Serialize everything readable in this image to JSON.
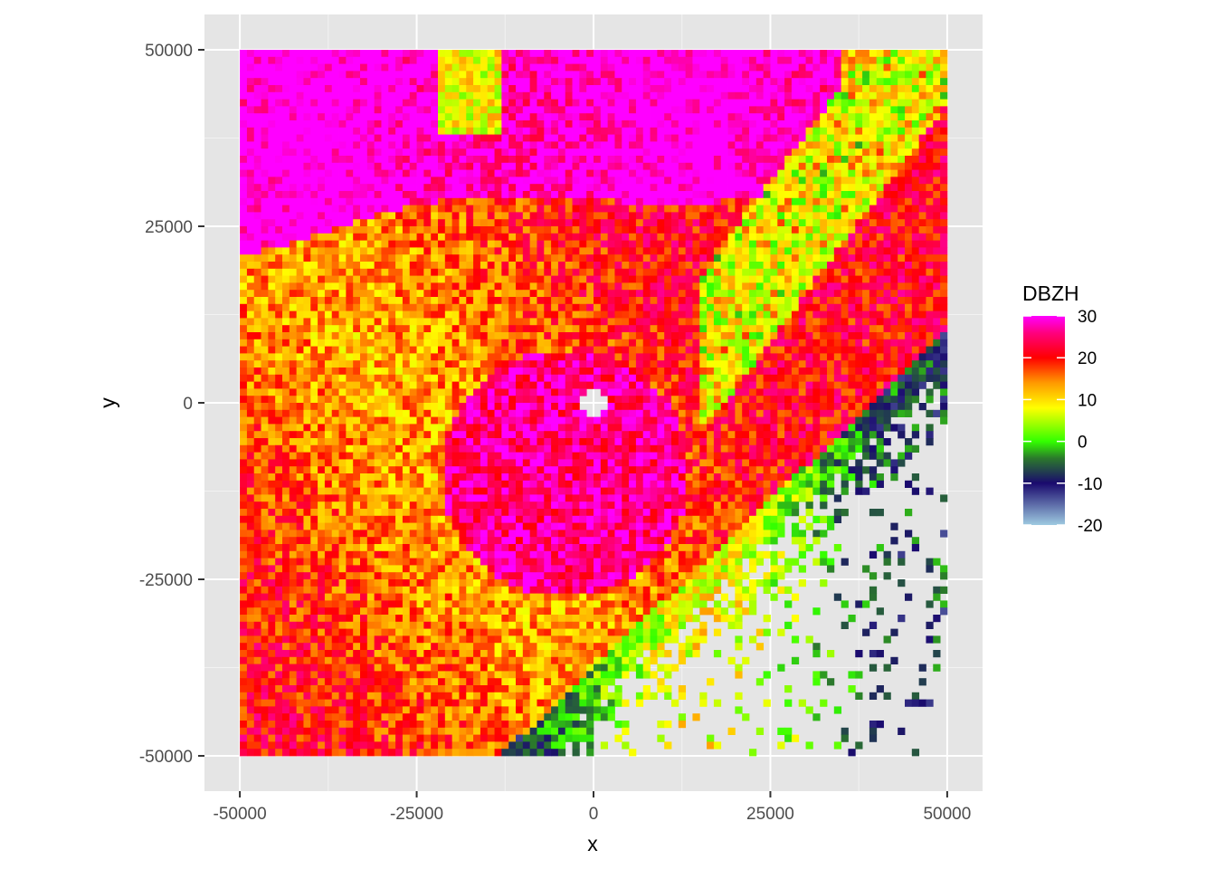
{
  "chart_data": {
    "type": "heatmap",
    "xlabel": "x",
    "ylabel": "y",
    "xlim": [
      -55000,
      55000
    ],
    "ylim": [
      -55000,
      55000
    ],
    "data_extent": {
      "x": [
        -50000,
        50000
      ],
      "y": [
        -50000,
        50000
      ]
    },
    "x_ticks": [
      -50000,
      -25000,
      0,
      25000,
      50000
    ],
    "x_tick_labels": [
      "-50000",
      "-25000",
      "0",
      "25000",
      "50000"
    ],
    "y_ticks": [
      -50000,
      -25000,
      0,
      25000,
      50000
    ],
    "y_tick_labels": [
      "-50000",
      "-25000",
      "0",
      "25000",
      "50000"
    ],
    "grid": true,
    "panel_background": "#e5e5e5",
    "legend": {
      "title": "DBZH",
      "placement": "right",
      "range": [
        -20,
        30
      ],
      "breaks": [
        30,
        20,
        10,
        0,
        -10,
        -20
      ],
      "break_labels": [
        "30",
        "20",
        "10",
        "0",
        "-10",
        "-20"
      ],
      "colors": [
        {
          "value": -20,
          "color": "#9ecae1"
        },
        {
          "value": -10,
          "color": "#1a0a6e"
        },
        {
          "value": -4,
          "color": "#2b7a2b"
        },
        {
          "value": 0,
          "color": "#33ff00"
        },
        {
          "value": 8,
          "color": "#ffff00"
        },
        {
          "value": 14,
          "color": "#ff9900"
        },
        {
          "value": 20,
          "color": "#ff0000"
        },
        {
          "value": 26,
          "color": "#ff0080"
        },
        {
          "value": 30,
          "color": "#ff00ff"
        }
      ]
    },
    "radar_gap": {
      "center": [
        0,
        0
      ],
      "radius": 2000
    },
    "approximate_regions": [
      {
        "description": "northern high-reflectivity band",
        "approx_dbzh": 30
      },
      {
        "description": "south-west broad precipitation",
        "approx_dbzh": 18
      },
      {
        "description": "north-east diagonal band",
        "approx_dbzh": 22
      },
      {
        "description": "south-east light echoes",
        "approx_dbzh": 2
      }
    ]
  }
}
